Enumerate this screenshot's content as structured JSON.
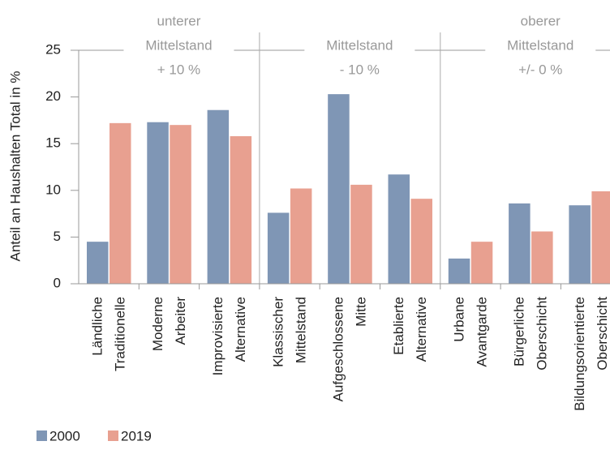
{
  "chart_data": {
    "type": "bar",
    "y_label": "Anteil an Haushalten Total in %",
    "categories": [
      [
        "Ländliche",
        "Traditionelle"
      ],
      [
        "Moderne",
        "Arbeiter"
      ],
      [
        "Improvisierte",
        "Alternative"
      ],
      [
        "Klassischer",
        "Mittelstand"
      ],
      [
        "Aufgeschlossene",
        "Mitte"
      ],
      [
        "Etablierte",
        "Alternative"
      ],
      [
        "Urbane",
        "Avantgarde"
      ],
      [
        "Bürgerliche",
        "Oberschicht"
      ],
      [
        "Bildungsorientierte",
        "Oberschicht"
      ]
    ],
    "series": [
      {
        "name": "2000",
        "color": "#7f96b5",
        "values": [
          4.5,
          17.3,
          18.6,
          7.6,
          20.3,
          11.7,
          2.7,
          8.6,
          8.4
        ]
      },
      {
        "name": "2019",
        "color": "#e8a090",
        "values": [
          17.2,
          17.0,
          15.8,
          10.2,
          10.6,
          9.1,
          4.5,
          5.6,
          9.9
        ]
      }
    ],
    "groups": [
      {
        "lines": [
          "unterer",
          "Mittelstand",
          "+ 10 %"
        ]
      },
      {
        "lines": [
          "Mittelstand",
          "- 10 %"
        ]
      },
      {
        "lines": [
          "oberer",
          "Mittelstand",
          "+/- 0 %"
        ]
      }
    ],
    "ylim": [
      0,
      25
    ],
    "yticks": [
      0,
      5,
      10,
      15,
      20,
      25
    ]
  }
}
